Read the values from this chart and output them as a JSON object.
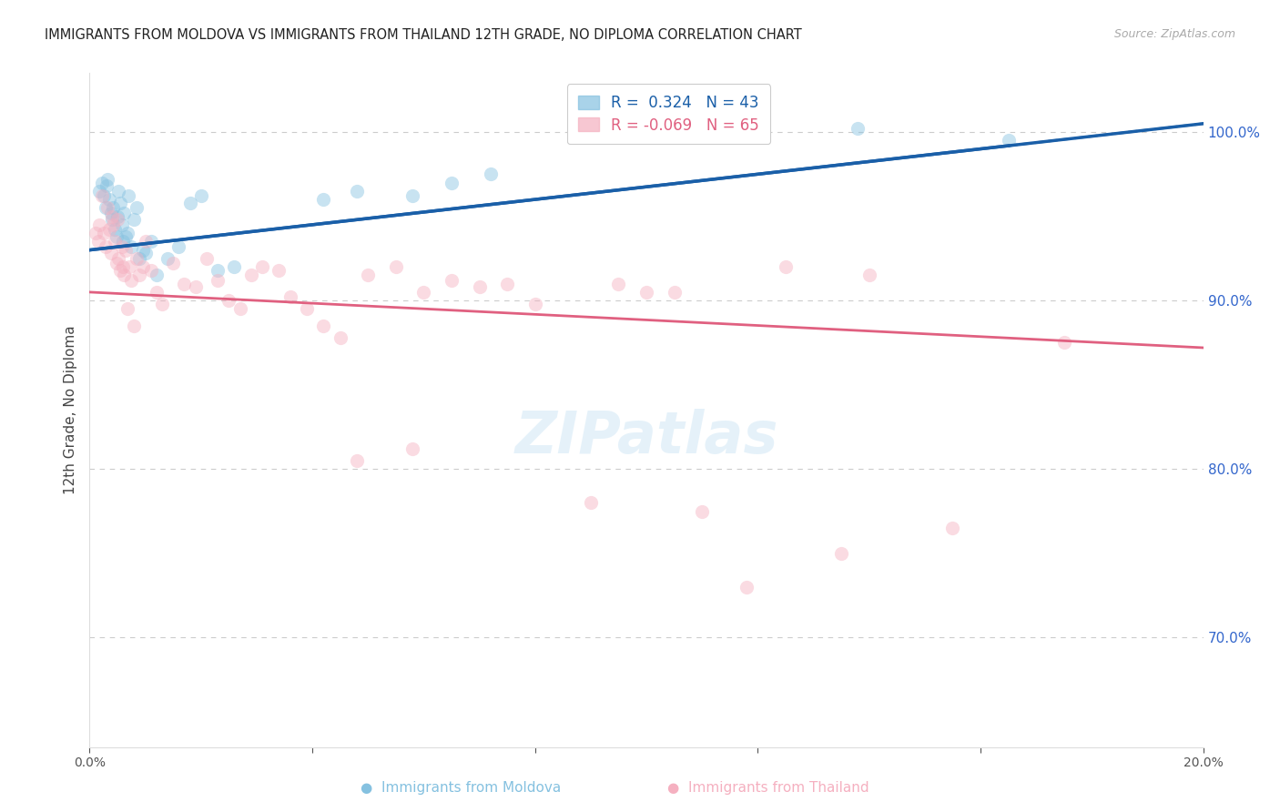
{
  "title": "IMMIGRANTS FROM MOLDOVA VS IMMIGRANTS FROM THAILAND 12TH GRADE, NO DIPLOMA CORRELATION CHART",
  "source": "Source: ZipAtlas.com",
  "ylabel": "12th Grade, No Diploma",
  "xlim": [
    0.0,
    20.0
  ],
  "ylim": [
    63.5,
    103.5
  ],
  "yticks": [
    70.0,
    80.0,
    90.0,
    100.0
  ],
  "ytick_labels": [
    "70.0%",
    "80.0%",
    "90.0%",
    "100.0%"
  ],
  "xtick_positions": [
    0.0,
    4.0,
    8.0,
    12.0,
    16.0,
    20.0
  ],
  "xtick_labels": [
    "0.0%",
    "",
    "",
    "",
    "",
    "20.0%"
  ],
  "moldova_r": 0.324,
  "moldova_n": 43,
  "thailand_r": -0.069,
  "thailand_n": 65,
  "moldova_scatter_color": "#85c1e0",
  "thailand_scatter_color": "#f5b0c0",
  "moldova_line_color": "#1a5fa8",
  "thailand_line_color": "#e06080",
  "moldova_x": [
    0.18,
    0.22,
    0.25,
    0.28,
    0.3,
    0.32,
    0.35,
    0.38,
    0.4,
    0.42,
    0.45,
    0.48,
    0.5,
    0.52,
    0.55,
    0.58,
    0.6,
    0.62,
    0.65,
    0.68,
    0.7,
    0.75,
    0.8,
    0.85,
    0.9,
    0.95,
    1.0,
    1.1,
    1.2,
    1.4,
    1.6,
    1.8,
    2.0,
    2.3,
    2.6,
    4.2,
    4.8,
    5.8,
    6.5,
    7.2,
    9.5,
    13.8,
    16.5
  ],
  "moldova_y": [
    96.5,
    97.0,
    96.2,
    95.5,
    96.8,
    97.2,
    96.0,
    95.2,
    94.8,
    95.5,
    94.2,
    93.8,
    95.0,
    96.5,
    95.8,
    94.5,
    93.5,
    95.2,
    93.8,
    94.0,
    96.2,
    93.2,
    94.8,
    95.5,
    92.5,
    93.0,
    92.8,
    93.5,
    91.5,
    92.5,
    93.2,
    95.8,
    96.2,
    91.8,
    92.0,
    96.0,
    96.5,
    96.2,
    97.0,
    97.5,
    100.0,
    100.2,
    99.5
  ],
  "thailand_x": [
    0.1,
    0.15,
    0.18,
    0.22,
    0.25,
    0.28,
    0.32,
    0.35,
    0.38,
    0.4,
    0.42,
    0.45,
    0.48,
    0.5,
    0.52,
    0.55,
    0.58,
    0.6,
    0.62,
    0.65,
    0.68,
    0.72,
    0.75,
    0.8,
    0.85,
    0.9,
    0.95,
    1.0,
    1.1,
    1.2,
    1.3,
    1.5,
    1.7,
    1.9,
    2.1,
    2.3,
    2.5,
    2.7,
    2.9,
    3.1,
    3.4,
    3.6,
    3.9,
    4.2,
    4.5,
    5.0,
    5.5,
    6.0,
    6.5,
    7.0,
    8.0,
    9.5,
    10.5,
    11.0,
    12.5,
    14.0,
    15.5,
    4.8,
    5.8,
    7.5,
    9.0,
    10.0,
    11.8,
    13.5,
    17.5
  ],
  "thailand_y": [
    94.0,
    93.5,
    94.5,
    96.2,
    94.0,
    93.2,
    95.5,
    94.2,
    92.8,
    95.0,
    94.5,
    93.5,
    92.2,
    94.8,
    92.5,
    91.8,
    93.2,
    92.0,
    91.5,
    93.0,
    89.5,
    92.0,
    91.2,
    88.5,
    92.5,
    91.5,
    92.0,
    93.5,
    91.8,
    90.5,
    89.8,
    92.2,
    91.0,
    90.8,
    92.5,
    91.2,
    90.0,
    89.5,
    91.5,
    92.0,
    91.8,
    90.2,
    89.5,
    88.5,
    87.8,
    91.5,
    92.0,
    90.5,
    91.2,
    90.8,
    89.8,
    91.0,
    90.5,
    77.5,
    92.0,
    91.5,
    76.5,
    80.5,
    81.2,
    91.0,
    78.0,
    90.5,
    73.0,
    75.0,
    87.5
  ]
}
